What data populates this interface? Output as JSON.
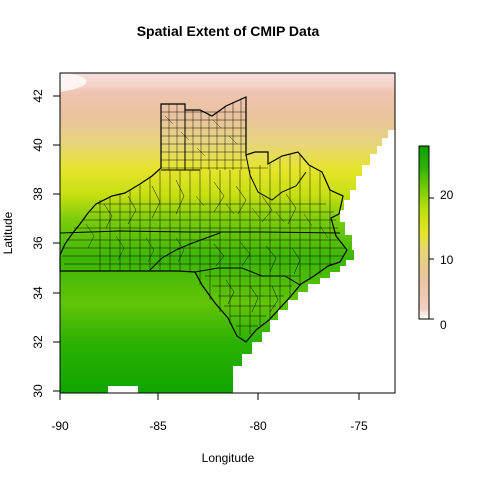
{
  "map": {
    "title": "Spatial Extent of CMIP Data",
    "xlabel": "Longitude",
    "ylabel": "Latitude",
    "x_ticks": [
      -90,
      -85,
      -80,
      -75
    ],
    "y_ticks": [
      30,
      32,
      34,
      36,
      38,
      40,
      42
    ],
    "xlim": [
      -90,
      -73
    ],
    "ylim": [
      29.4,
      43.6
    ],
    "colorbar": {
      "ticks": [
        0,
        10,
        20
      ],
      "range": [
        -1,
        28
      ],
      "colors": [
        "#ffffff",
        "#f3cfc1",
        "#e8c3a4",
        "#e5d27c",
        "#e5e52b",
        "#bfe00e",
        "#7fce08",
        "#2fb202",
        "#089f00"
      ]
    },
    "palette_note_colors": {
      "border": "#000000",
      "no_data": "#ffffff"
    }
  }
}
